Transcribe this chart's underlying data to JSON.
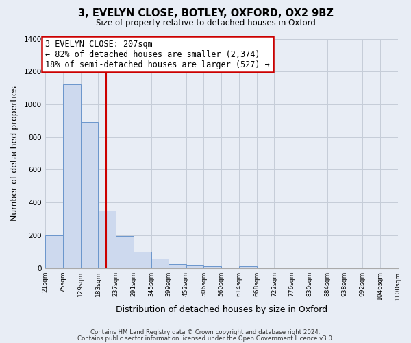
{
  "title": "3, EVELYN CLOSE, BOTLEY, OXFORD, OX2 9BZ",
  "subtitle": "Size of property relative to detached houses in Oxford",
  "xlabel": "Distribution of detached houses by size in Oxford",
  "ylabel": "Number of detached properties",
  "bar_color": "#cdd9ee",
  "bar_edge_color": "#6b96cc",
  "background_color": "#e8edf5",
  "grid_color": "#c5cdd8",
  "vline_x": 207,
  "vline_color": "#cc0000",
  "bin_edges": [
    21,
    75,
    129,
    183,
    237,
    291,
    345,
    399,
    452,
    506,
    560,
    614,
    668,
    722,
    776,
    830,
    884,
    938,
    992,
    1046,
    1100
  ],
  "bin_counts": [
    200,
    1120,
    890,
    350,
    195,
    100,
    55,
    25,
    15,
    10,
    0,
    10,
    0,
    0,
    0,
    0,
    0,
    0,
    0,
    0
  ],
  "ylim": [
    0,
    1400
  ],
  "yticks": [
    0,
    200,
    400,
    600,
    800,
    1000,
    1200,
    1400
  ],
  "annotation_title": "3 EVELYN CLOSE: 207sqm",
  "annotation_line1": "← 82% of detached houses are smaller (2,374)",
  "annotation_line2": "18% of semi-detached houses are larger (527) →",
  "annotation_box_color": "#ffffff",
  "annotation_box_edge": "#cc0000",
  "footer1": "Contains HM Land Registry data © Crown copyright and database right 2024.",
  "footer2": "Contains public sector information licensed under the Open Government Licence v3.0."
}
